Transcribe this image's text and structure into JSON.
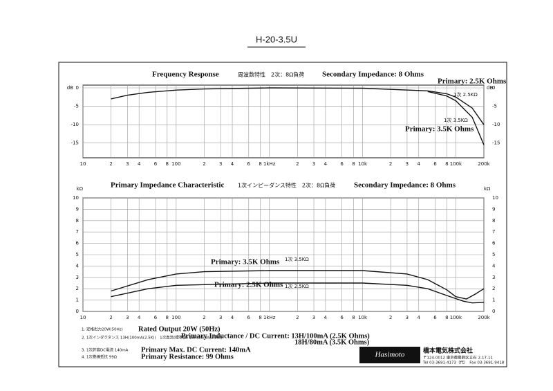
{
  "header": {
    "title": "H-20-3.5U"
  },
  "chart_data": [
    {
      "type": "line",
      "title": "Frequency Response",
      "subtitle": "周波数特性　2次：8Ω負荷",
      "condition": "Secondary Impedance: 8 Ohms",
      "y_unit": "dB",
      "xscale": "log",
      "xlim": [
        10,
        200000
      ],
      "ylim": [
        -19,
        0
      ],
      "xticks": [
        10,
        {
          "value": 20,
          "label": "2"
        },
        {
          "value": 30,
          "label": "3"
        },
        {
          "value": 40,
          "label": "4"
        },
        {
          "value": 60,
          "label": "6"
        },
        {
          "value": 80,
          "label": "8"
        },
        100,
        {
          "value": 200,
          "label": "2"
        },
        {
          "value": 300,
          "label": "3"
        },
        {
          "value": 400,
          "label": "4"
        },
        {
          "value": 600,
          "label": "6"
        },
        {
          "value": 800,
          "label": "8"
        },
        {
          "value": 1000,
          "label": "1kHz"
        },
        {
          "value": 2000,
          "label": "2"
        },
        {
          "value": 3000,
          "label": "3"
        },
        {
          "value": 4000,
          "label": "4"
        },
        {
          "value": 6000,
          "label": "6"
        },
        {
          "value": 8000,
          "label": "8"
        },
        {
          "value": 10000,
          "label": "10k"
        },
        {
          "value": 20000,
          "label": "2"
        },
        {
          "value": 30000,
          "label": "3"
        },
        {
          "value": 40000,
          "label": "4"
        },
        {
          "value": 60000,
          "label": "6"
        },
        {
          "value": 80000,
          "label": "8"
        },
        {
          "value": 100000,
          "label": "100k"
        },
        {
          "value": 200000,
          "label": "200k"
        }
      ],
      "yticks": [
        0,
        -5,
        -10,
        -15
      ],
      "grid": true,
      "series": [
        {
          "name": "Primary: 2.5K Ohms",
          "color": "#111",
          "x": [
            20,
            30,
            50,
            100,
            200,
            1000,
            10000,
            50000,
            80000,
            100000,
            150000,
            200000
          ],
          "values": [
            -3,
            -2,
            -1.2,
            -0.6,
            -0.3,
            0,
            -0.1,
            -0.8,
            -1.6,
            -2.5,
            -5.5,
            -10
          ]
        },
        {
          "name": "Primary: 3.5K Ohms",
          "color": "#111",
          "x": [
            50000,
            80000,
            100000,
            150000,
            200000
          ],
          "values": [
            -1,
            -2.2,
            -3.5,
            -8,
            -15.5
          ]
        }
      ],
      "annotations": [
        "1次 2.5KΩ",
        "1次 3.5KΩ"
      ]
    },
    {
      "type": "line",
      "title": "Primary Impedance Characteristic",
      "subtitle": "1次インピーダンス特性　2次：8Ω負荷",
      "condition": "Secondary Impedance: 8 Ohms",
      "y_unit": "kΩ",
      "xscale": "log",
      "xlim": [
        10,
        200000
      ],
      "ylim": [
        0,
        10
      ],
      "xticks": [
        10,
        {
          "value": 20,
          "label": "2"
        },
        {
          "value": 30,
          "label": "3"
        },
        {
          "value": 40,
          "label": "4"
        },
        {
          "value": 60,
          "label": "6"
        },
        {
          "value": 80,
          "label": "8"
        },
        100,
        {
          "value": 200,
          "label": "2"
        },
        {
          "value": 300,
          "label": "3"
        },
        {
          "value": 400,
          "label": "4"
        },
        {
          "value": 600,
          "label": "6"
        },
        {
          "value": 800,
          "label": "8"
        },
        {
          "value": 1000,
          "label": "1kHz"
        },
        {
          "value": 2000,
          "label": "2"
        },
        {
          "value": 3000,
          "label": "3"
        },
        {
          "value": 4000,
          "label": "4"
        },
        {
          "value": 6000,
          "label": "6"
        },
        {
          "value": 8000,
          "label": "8"
        },
        {
          "value": 10000,
          "label": "10k"
        },
        {
          "value": 20000,
          "label": "2"
        },
        {
          "value": 30000,
          "label": "3"
        },
        {
          "value": 40000,
          "label": "4"
        },
        {
          "value": 60000,
          "label": "6"
        },
        {
          "value": 80000,
          "label": "8"
        },
        {
          "value": 100000,
          "label": "100k"
        },
        {
          "value": 200000,
          "label": "200k"
        }
      ],
      "yticks": [
        0,
        1,
        2,
        3,
        4,
        5,
        6,
        7,
        8,
        9,
        10
      ],
      "grid": true,
      "series": [
        {
          "name": "Primary: 3.5K Ohms",
          "color": "#111",
          "x": [
            20,
            50,
            100,
            200,
            1000,
            10000,
            30000,
            50000,
            80000,
            100000,
            130000,
            160000,
            200000
          ],
          "values": [
            1.8,
            2.8,
            3.3,
            3.5,
            3.6,
            3.6,
            3.3,
            2.8,
            1.9,
            1.3,
            1.1,
            1.5,
            2
          ]
        },
        {
          "name": "Primary: 2.5K Ohms",
          "color": "#111",
          "x": [
            20,
            50,
            100,
            1000,
            10000,
            30000,
            50000,
            80000,
            120000,
            150000,
            200000
          ],
          "values": [
            1.3,
            2,
            2.3,
            2.5,
            2.5,
            2.3,
            2,
            1.4,
            0.9,
            0.75,
            0.8
          ]
        }
      ],
      "annotations": [
        "1次 3.5KΩ",
        "1次 2.5KΩ"
      ]
    }
  ],
  "specs": [
    {
      "ja": "1. 定格出力20W(50Hz)",
      "en": [
        "Rated Output 20W (50Hz)"
      ]
    },
    {
      "ja": "2. 1次インダクタンス 13H(100mA(2.5K))　1次直流(標準値) 18H(80mA(3.5K))",
      "en": [
        "Primary Inductance / DC Current: 13H/100mA (2.5K Ohms)",
        "18H/80mA (3.5K Ohms)"
      ]
    },
    {
      "ja": "3. 1次許容DC電流 140mA",
      "en": [
        "Primary Max. DC Current: 140mA"
      ]
    },
    {
      "ja": "4. 1次巻線抵抗 99Ω",
      "en": [
        "Primary Resistance: 99 Ohms"
      ]
    }
  ],
  "company": {
    "logo": "Hasimoto",
    "name": "橋本電気株式会社",
    "address": "〒124-0012 東京都葛飾区立石 2-17-11",
    "phone": "Tel 03-3691-4173（代）　Fax 03-3691-9418"
  }
}
